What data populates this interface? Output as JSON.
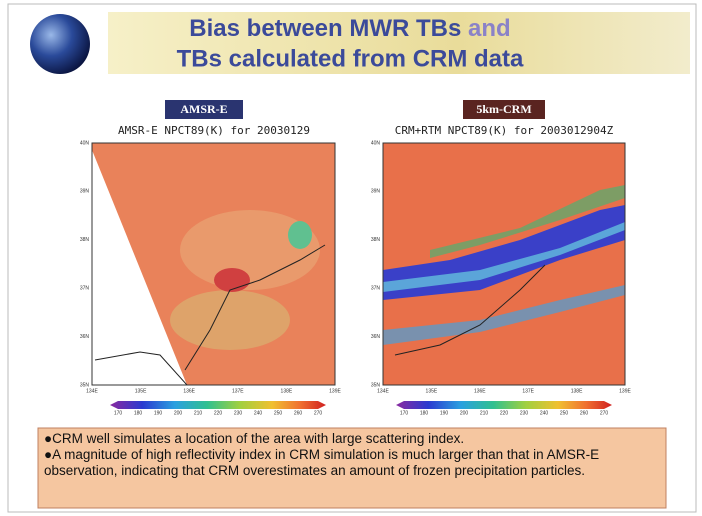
{
  "header": {
    "title_line1": [
      "Bias between MWR TBs",
      "and"
    ],
    "title_line2": "TBs calculated from CRM data"
  },
  "panels": [
    {
      "label": "AMSR-E",
      "title": "AMSR-E NPCT89(K) for 20030129"
    },
    {
      "label": "5km-CRM",
      "title": "CRM+RTM NPCT89(K) for 2003012904Z"
    }
  ],
  "map_axes": {
    "y_labels": [
      "40N",
      "39N",
      "38N",
      "37N",
      "36N",
      "35N"
    ],
    "x_labels": [
      "134E",
      "135E",
      "136E",
      "137E",
      "138E",
      "139E"
    ]
  },
  "colorbar_labels": [
    "170",
    "180",
    "190",
    "200",
    "210",
    "220",
    "230",
    "240",
    "250",
    "260",
    "270"
  ],
  "bullets": [
    "CRM well simulates a location of the area with large scattering index.",
    "A magnitude of  high reflectivity index in CRM simulation is much larger than that in AMSR-E observation, indicating that CRM overestimates an amount of frozen precipitation particles."
  ]
}
